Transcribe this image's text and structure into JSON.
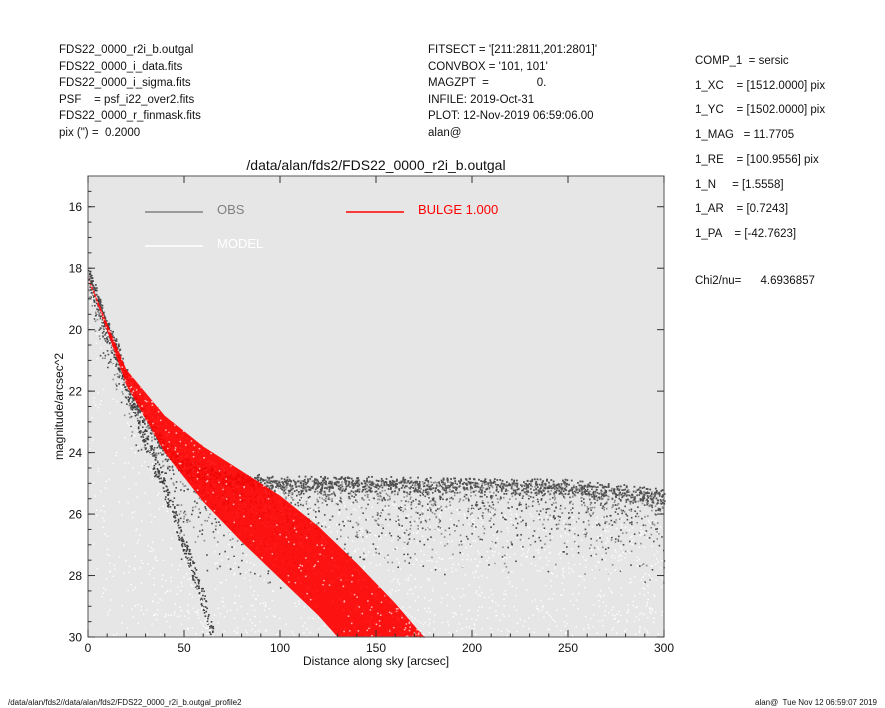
{
  "header_left": [
    "FDS22_0000_r2i_b.outgal",
    "FDS22_0000_i_data.fits",
    "FDS22_0000_i_sigma.fits",
    "PSF    = psf_i22_over2.fits",
    "FDS22_0000_r_finmask.fits",
    "pix (\") =  0.2000"
  ],
  "header_mid": [
    "FITSECT = '[211:2811,201:2801]'",
    "CONVBOX = '101, 101'",
    "MAGZPT  =               0.",
    "INFILE: 2019-Oct-31",
    "PLOT: 12-Nov-2019 06:59:06.00",
    "alan@"
  ],
  "header_right": [
    "COMP_1  = sersic",
    "1_XC    = [1512.0000] pix",
    "1_YC    = [1502.0000] pix",
    "1_MAG   = 11.7705",
    "1_RE    = [100.9556] pix",
    "1_N     = [1.5558]",
    "1_AR    = [0.7243]",
    "1_PA    = [-42.7623]"
  ],
  "chi2": "Chi2/nu=      4.6936857",
  "footer_left": "/data/alan/fds2//data/alan/fds2/FDS22_0000_r2i_b.outgal_profile2",
  "footer_right": "alan@  Tue Nov 12 06:59:07 2019",
  "chart_data": {
    "type": "scatter",
    "title": "/data/alan/fds2/FDS22_0000_r2i_b.outgal",
    "xlabel": "Distance along sky [arcsec]",
    "ylabel": "magnitude/arcsec^2",
    "xlim": [
      0,
      300
    ],
    "ylim": [
      30,
      15
    ],
    "y_inverted": true,
    "x_ticks": [
      0,
      50,
      100,
      150,
      200,
      250,
      300
    ],
    "y_ticks": [
      16,
      18,
      20,
      22,
      24,
      26,
      28,
      30
    ],
    "background": "#e6e6e6",
    "legend": [
      {
        "label": "OBS",
        "color": "#808080"
      },
      {
        "label": "MODEL",
        "color": "#ffffff"
      },
      {
        "label": "BULGE  1.000",
        "color": "#ff0000"
      }
    ],
    "series": [
      {
        "name": "OBS",
        "color": "#555555",
        "description_points": [
          [
            0,
            18.0
          ],
          [
            5,
            19.0
          ],
          [
            10,
            19.8
          ],
          [
            15,
            20.5
          ],
          [
            20,
            21.4
          ],
          [
            25,
            22.2
          ],
          [
            30,
            22.8
          ],
          [
            35,
            23.3
          ],
          [
            40,
            23.7
          ],
          [
            45,
            24.0
          ],
          [
            50,
            24.3
          ],
          [
            60,
            24.5
          ],
          [
            70,
            24.7
          ],
          [
            80,
            24.8
          ],
          [
            100,
            24.9
          ],
          [
            150,
            24.9
          ],
          [
            200,
            24.95
          ],
          [
            250,
            25.0
          ],
          [
            300,
            25.3
          ]
        ],
        "lower_envelope": [
          [
            0,
            18.2
          ],
          [
            10,
            20.0
          ],
          [
            20,
            21.8
          ],
          [
            30,
            23.6
          ],
          [
            40,
            25.2
          ],
          [
            50,
            27.0
          ],
          [
            60,
            28.8
          ],
          [
            65,
            30.0
          ]
        ],
        "faint_cloud_upper": [
          [
            50,
            24.5
          ],
          [
            100,
            25.2
          ],
          [
            150,
            25.6
          ],
          [
            200,
            25.8
          ],
          [
            250,
            26.0
          ],
          [
            300,
            26.2
          ]
        ]
      },
      {
        "name": "MODEL",
        "color": "#ffffff",
        "x": [
          0,
          10,
          20,
          30,
          40,
          50,
          60,
          70,
          80,
          90,
          100,
          110,
          120,
          130,
          140,
          150,
          160,
          170,
          175
        ],
        "y": [
          18.3,
          20.2,
          21.5,
          22.5,
          23.3,
          24.0,
          24.6,
          25.15,
          25.65,
          26.1,
          26.55,
          26.95,
          27.35,
          27.75,
          28.15,
          28.55,
          28.95,
          29.4,
          29.6
        ]
      },
      {
        "name": "BULGE  1.000",
        "color": "#ff0000",
        "band_upper": [
          [
            0,
            18.3
          ],
          [
            20,
            21.3
          ],
          [
            40,
            22.8
          ],
          [
            60,
            23.8
          ],
          [
            80,
            24.6
          ],
          [
            100,
            25.4
          ],
          [
            120,
            26.4
          ],
          [
            140,
            27.6
          ],
          [
            160,
            28.9
          ],
          [
            175,
            30.0
          ]
        ],
        "band_lower": [
          [
            0,
            18.3
          ],
          [
            20,
            21.8
          ],
          [
            40,
            24.0
          ],
          [
            60,
            25.6
          ],
          [
            80,
            26.9
          ],
          [
            100,
            28.1
          ],
          [
            120,
            29.3
          ],
          [
            130,
            30.0
          ]
        ]
      }
    ]
  }
}
